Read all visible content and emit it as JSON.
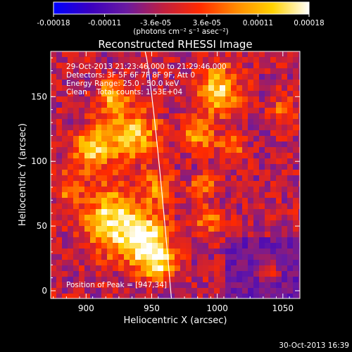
{
  "chart_data": {
    "type": "heatmap",
    "title": "Reconstructed RHESSI Image",
    "xlabel": "Heliocentric X (arcsec)",
    "ylabel": "Heliocentric Y (arcsec)",
    "xlim": [
      873,
      1063
    ],
    "ylim": [
      -6,
      185
    ],
    "x_ticks": [
      900,
      950,
      1000,
      1050
    ],
    "y_ticks": [
      0,
      50,
      100,
      150
    ],
    "x_tick_labels": [
      "900",
      "950",
      "1000",
      "1050"
    ],
    "y_tick_labels": [
      "0",
      "50",
      "100",
      "150"
    ],
    "grid": false,
    "colorbar": {
      "range": [
        -0.00018,
        0.00018
      ],
      "tick_labels": [
        "-0.00018",
        "-0.00011",
        "-3.6e-05",
        "3.6e-05",
        "0.00011",
        "0.00018"
      ],
      "unit_label": "(photons cm⁻² s⁻¹ asec⁻²)",
      "colormap": [
        "#0000ff",
        "#3a00c0",
        "#6a1aa0",
        "#c01f40",
        "#ff2a00",
        "#ff8a00",
        "#ffd200",
        "#ffffff"
      ]
    },
    "info_lines": [
      "29-Oct-2013 21:23:46.000 to 21:29:46.000",
      "Detectors: 3F 5F 6F 7F 8F 9F, Att 0",
      "Energy Range: 25.0 - 50.0 keV",
      "Clean    Total counts: 1.53E+04"
    ],
    "peak_label": "Position of Peak = [947,34]",
    "peak_position": [
      947,
      34
    ],
    "limb_line_color": "#ffffff"
  },
  "footer": {
    "timestamp": "30-Oct-2013 16:39"
  }
}
